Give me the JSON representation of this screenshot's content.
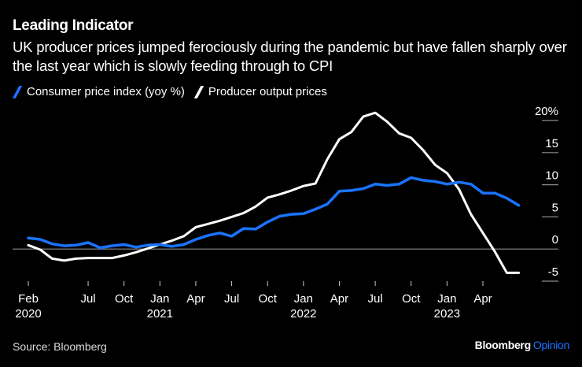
{
  "header": {
    "title": "Leading Indicator",
    "subtitle": "UK producer prices jumped ferociously during the pandemic but have fallen sharply over the last year which is slowly feeding through to CPI"
  },
  "footer": {
    "source": "Source: Bloomberg",
    "brand": "Bloomberg",
    "brand_suffix": "Opinion"
  },
  "colors": {
    "background": "#000000",
    "cpi": "#1a73ff",
    "ppi": "#ffffff",
    "gridline": "#8c8c8c",
    "brand_accent": "#1a73ff"
  },
  "chart_data": {
    "type": "line",
    "title": "Leading Indicator",
    "xlabel": "",
    "ylabel": "",
    "y_unit_label": "20%",
    "ylim": [
      -5,
      20
    ],
    "y_ticks": [
      20,
      15,
      10,
      5,
      0,
      -5
    ],
    "y_tick_labels": [
      "20%",
      "15",
      "10",
      "5",
      "0",
      "-5"
    ],
    "y_axis_side": "right",
    "grid": false,
    "zero_line": true,
    "legend_position": "top-left",
    "x": [
      "2020-02",
      "2020-03",
      "2020-04",
      "2020-05",
      "2020-06",
      "2020-07",
      "2020-08",
      "2020-09",
      "2020-10",
      "2020-11",
      "2020-12",
      "2021-01",
      "2021-02",
      "2021-03",
      "2021-04",
      "2021-05",
      "2021-06",
      "2021-07",
      "2021-08",
      "2021-09",
      "2021-10",
      "2021-11",
      "2021-12",
      "2022-01",
      "2022-02",
      "2022-03",
      "2022-04",
      "2022-05",
      "2022-06",
      "2022-07",
      "2022-08",
      "2022-09",
      "2022-10",
      "2022-11",
      "2022-12",
      "2023-01",
      "2023-02",
      "2023-03",
      "2023-04",
      "2023-05",
      "2023-06",
      "2023-07"
    ],
    "x_ticks": [
      {
        "month": "2020-02",
        "label": "Feb",
        "year": "2020"
      },
      {
        "month": "2020-07",
        "label": "Jul",
        "year": ""
      },
      {
        "month": "2020-10",
        "label": "Oct",
        "year": ""
      },
      {
        "month": "2021-01",
        "label": "Jan",
        "year": "2021"
      },
      {
        "month": "2021-04",
        "label": "Apr",
        "year": ""
      },
      {
        "month": "2021-07",
        "label": "Jul",
        "year": ""
      },
      {
        "month": "2021-10",
        "label": "Oct",
        "year": ""
      },
      {
        "month": "2022-01",
        "label": "Jan",
        "year": "2022"
      },
      {
        "month": "2022-04",
        "label": "Apr",
        "year": ""
      },
      {
        "month": "2022-07",
        "label": "Jul",
        "year": ""
      },
      {
        "month": "2022-10",
        "label": "Oct",
        "year": ""
      },
      {
        "month": "2023-01",
        "label": "Jan",
        "year": "2023"
      },
      {
        "month": "2023-04",
        "label": "Apr",
        "year": ""
      }
    ],
    "series": [
      {
        "name": "Consumer price index (yoy %)",
        "color": "#1a73ff",
        "values": [
          1.7,
          1.5,
          0.8,
          0.5,
          0.6,
          1.0,
          0.2,
          0.5,
          0.7,
          0.3,
          0.6,
          0.7,
          0.4,
          0.7,
          1.5,
          2.1,
          2.5,
          2.0,
          3.2,
          3.1,
          4.2,
          5.1,
          5.4,
          5.5,
          6.2,
          7.0,
          9.0,
          9.1,
          9.4,
          10.1,
          9.9,
          10.1,
          11.1,
          10.7,
          10.5,
          10.1,
          10.4,
          10.1,
          8.7,
          8.7,
          7.9,
          6.8
        ]
      },
      {
        "name": "Producer output prices",
        "color": "#ffffff",
        "values": [
          0.6,
          -0.1,
          -1.5,
          -1.8,
          -1.5,
          -1.4,
          -1.4,
          -1.4,
          -1.0,
          -0.5,
          0.1,
          0.7,
          1.3,
          2.0,
          3.4,
          3.9,
          4.4,
          5.0,
          5.6,
          6.6,
          8.0,
          8.5,
          9.1,
          9.8,
          10.2,
          14.0,
          17.1,
          18.2,
          20.6,
          21.2,
          19.8,
          18.0,
          17.3,
          15.4,
          13.1,
          11.8,
          9.3,
          5.4,
          2.5,
          -0.4,
          -3.7,
          -3.7
        ]
      }
    ]
  }
}
